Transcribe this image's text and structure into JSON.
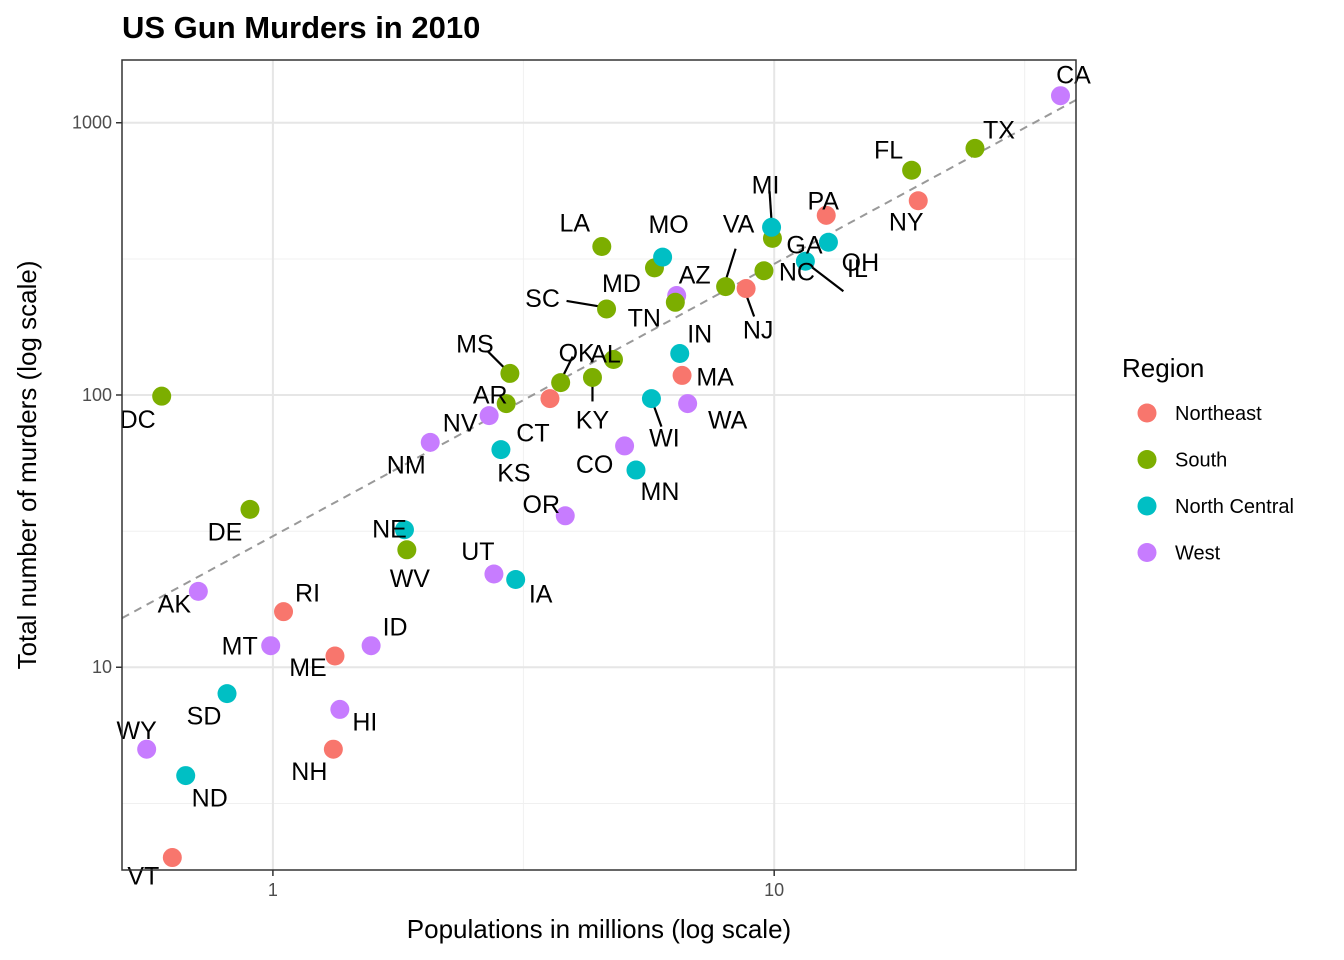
{
  "chart_data": {
    "type": "scatter",
    "title": "US Gun Murders in 2010",
    "xlabel": "Populations in millions (log scale)",
    "ylabel": "Total number of murders (log scale)",
    "x_scale": "log10",
    "y_scale": "log10",
    "xlim": [
      0.5,
      40
    ],
    "ylim": [
      1.8,
      1700
    ],
    "x_ticks": [
      {
        "value": 1,
        "label": "1"
      },
      {
        "value": 10,
        "label": "10"
      }
    ],
    "y_ticks": [
      {
        "value": 10,
        "label": "10"
      },
      {
        "value": 100,
        "label": "100"
      },
      {
        "value": 1000,
        "label": "1000"
      }
    ],
    "grid": true,
    "reference_line": {
      "style": "dashed",
      "color": "#999999",
      "murders_per_million": 30.3
    },
    "legend": {
      "title": "Region",
      "placement": "right",
      "entries": [
        {
          "name": "Northeast",
          "color": "#F8766D"
        },
        {
          "name": "South",
          "color": "#7CAE00"
        },
        {
          "name": "North Central",
          "color": "#00BFC4"
        },
        {
          "name": "West",
          "color": "#C77CFF"
        }
      ]
    },
    "points": [
      {
        "abb": "AL",
        "region": "South",
        "x": 4.78,
        "y": 135
      },
      {
        "abb": "AK",
        "region": "West",
        "x": 0.71,
        "y": 19
      },
      {
        "abb": "AZ",
        "region": "West",
        "x": 6.39,
        "y": 232
      },
      {
        "abb": "AR",
        "region": "South",
        "x": 2.92,
        "y": 93
      },
      {
        "abb": "CA",
        "region": "West",
        "x": 37.25,
        "y": 1257
      },
      {
        "abb": "CO",
        "region": "West",
        "x": 5.03,
        "y": 65
      },
      {
        "abb": "CT",
        "region": "Northeast",
        "x": 3.57,
        "y": 97
      },
      {
        "abb": "DE",
        "region": "South",
        "x": 0.9,
        "y": 38
      },
      {
        "abb": "DC",
        "region": "South",
        "x": 0.6,
        "y": 99
      },
      {
        "abb": "FL",
        "region": "South",
        "x": 18.8,
        "y": 669
      },
      {
        "abb": "GA",
        "region": "South",
        "x": 9.92,
        "y": 376
      },
      {
        "abb": "HI",
        "region": "West",
        "x": 1.36,
        "y": 7
      },
      {
        "abb": "ID",
        "region": "West",
        "x": 1.57,
        "y": 12
      },
      {
        "abb": "IL",
        "region": "North Central",
        "x": 12.83,
        "y": 364
      },
      {
        "abb": "IN",
        "region": "North Central",
        "x": 6.48,
        "y": 142
      },
      {
        "abb": "IA",
        "region": "North Central",
        "x": 3.05,
        "y": 21
      },
      {
        "abb": "KS",
        "region": "North Central",
        "x": 2.85,
        "y": 63
      },
      {
        "abb": "KY",
        "region": "South",
        "x": 4.34,
        "y": 116
      },
      {
        "abb": "LA",
        "region": "South",
        "x": 4.53,
        "y": 351
      },
      {
        "abb": "ME",
        "region": "Northeast",
        "x": 1.33,
        "y": 11
      },
      {
        "abb": "MD",
        "region": "South",
        "x": 5.77,
        "y": 293
      },
      {
        "abb": "MA",
        "region": "Northeast",
        "x": 6.55,
        "y": 118
      },
      {
        "abb": "MI",
        "region": "North Central",
        "x": 9.88,
        "y": 413
      },
      {
        "abb": "MN",
        "region": "North Central",
        "x": 5.3,
        "y": 53
      },
      {
        "abb": "MS",
        "region": "South",
        "x": 2.97,
        "y": 120
      },
      {
        "abb": "MO",
        "region": "North Central",
        "x": 5.99,
        "y": 321
      },
      {
        "abb": "MT",
        "region": "West",
        "x": 0.99,
        "y": 12
      },
      {
        "abb": "NE",
        "region": "North Central",
        "x": 1.83,
        "y": 32
      },
      {
        "abb": "NV",
        "region": "West",
        "x": 2.7,
        "y": 84
      },
      {
        "abb": "NH",
        "region": "Northeast",
        "x": 1.32,
        "y": 5
      },
      {
        "abb": "NJ",
        "region": "Northeast",
        "x": 8.79,
        "y": 246
      },
      {
        "abb": "NM",
        "region": "West",
        "x": 2.06,
        "y": 67
      },
      {
        "abb": "NY",
        "region": "Northeast",
        "x": 19.38,
        "y": 517
      },
      {
        "abb": "NC",
        "region": "South",
        "x": 9.54,
        "y": 286
      },
      {
        "abb": "ND",
        "region": "North Central",
        "x": 0.67,
        "y": 4
      },
      {
        "abb": "OH",
        "region": "North Central",
        "x": 11.54,
        "y": 310
      },
      {
        "abb": "OK",
        "region": "South",
        "x": 3.75,
        "y": 111
      },
      {
        "abb": "OR",
        "region": "West",
        "x": 3.83,
        "y": 36
      },
      {
        "abb": "PA",
        "region": "Northeast",
        "x": 12.7,
        "y": 457
      },
      {
        "abb": "RI",
        "region": "Northeast",
        "x": 1.05,
        "y": 16
      },
      {
        "abb": "SC",
        "region": "South",
        "x": 4.63,
        "y": 207
      },
      {
        "abb": "SD",
        "region": "North Central",
        "x": 0.81,
        "y": 8
      },
      {
        "abb": "TN",
        "region": "South",
        "x": 6.35,
        "y": 219
      },
      {
        "abb": "TX",
        "region": "South",
        "x": 25.15,
        "y": 805
      },
      {
        "abb": "UT",
        "region": "West",
        "x": 2.76,
        "y": 22
      },
      {
        "abb": "VT",
        "region": "Northeast",
        "x": 0.63,
        "y": 2
      },
      {
        "abb": "VA",
        "region": "South",
        "x": 8.0,
        "y": 250
      },
      {
        "abb": "WA",
        "region": "West",
        "x": 6.72,
        "y": 93
      },
      {
        "abb": "WV",
        "region": "South",
        "x": 1.85,
        "y": 27
      },
      {
        "abb": "WI",
        "region": "North Central",
        "x": 5.69,
        "y": 97
      },
      {
        "abb": "WY",
        "region": "West",
        "x": 0.56,
        "y": 5
      }
    ]
  }
}
